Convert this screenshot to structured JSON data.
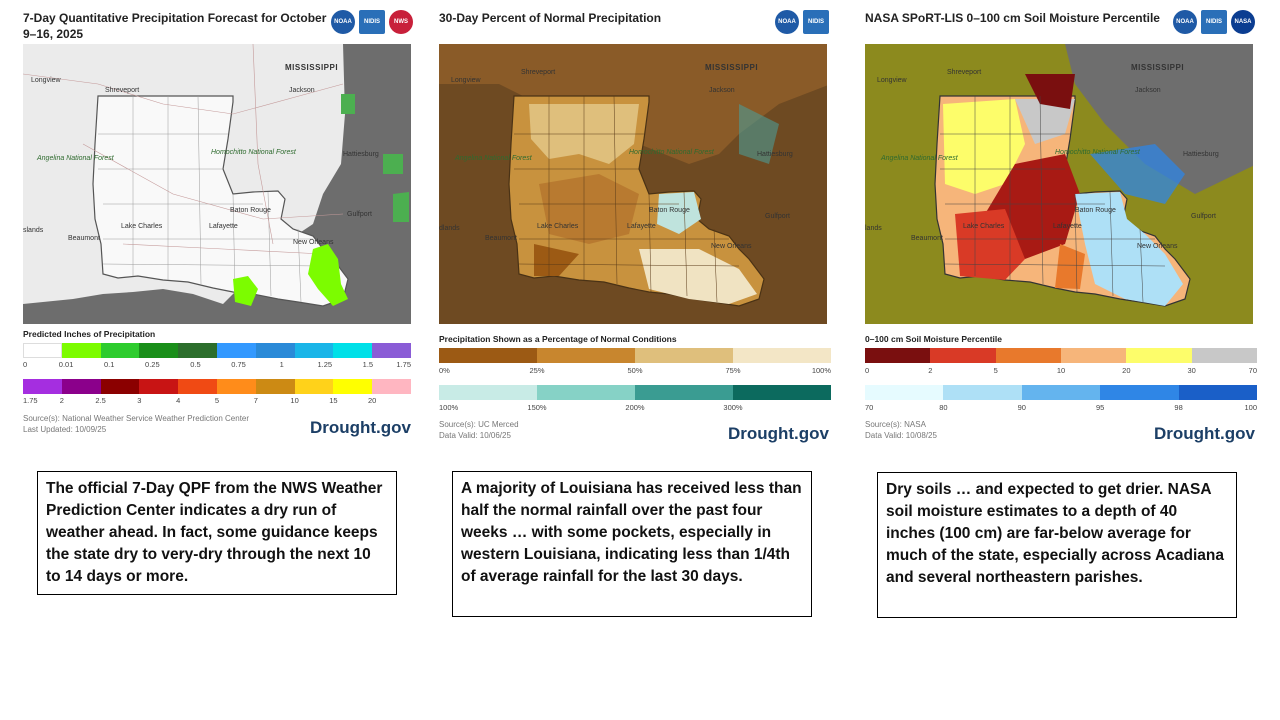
{
  "panels": [
    {
      "title": "7-Day Quantitative Precipitation Forecast for October 9–16, 2025",
      "logos": [
        "NOAA",
        "NIDIS",
        "NWS"
      ],
      "map_labels": {
        "longview": "Longview",
        "shreveport": "Shreveport",
        "mississippi": "MISSISSIPPI",
        "jackson": "Jackson",
        "angelina": "Angelina National Forest",
        "homochitto": "Homochitto National Forest",
        "hattiesburg": "Hattiesburg",
        "baton_rouge": "Baton Rouge",
        "gulfport": "Gulfport",
        "beaumont": "Beaumont",
        "lake_charles": "Lake Charles",
        "lafayette": "Lafayette",
        "new_orleans": "New Orleans",
        "islands": "slands"
      },
      "legend_title": "Predicted Inches of Precipitation",
      "legend_row1_colors": [
        "#ffffff",
        "#7cfc00",
        "#2ecc2e",
        "#1a8f1a",
        "#2c6e2c",
        "#3399ff",
        "#2a8ad8",
        "#1ab5e8",
        "#00e0e8",
        "#8a5cd6"
      ],
      "legend_row1_ticks": [
        "0",
        "0.01",
        "0.1",
        "0.25",
        "0.5",
        "0.75",
        "1",
        "1.25",
        "1.5",
        "1.75"
      ],
      "legend_row2_colors": [
        "#a52ee0",
        "#8b008b",
        "#8b0000",
        "#c81414",
        "#f04a14",
        "#ff8c1a",
        "#cc8a14",
        "#ffd21a",
        "#ffff00",
        "#ffb6c1"
      ],
      "legend_row2_ticks": [
        "1.75",
        "2",
        "2.5",
        "3",
        "4",
        "5",
        "7",
        "10",
        "15",
        "20"
      ],
      "source": "Source(s): National Weather Service Weather Prediction Center",
      "updated": "Last Updated: 10/09/25",
      "brand": "Drought.gov"
    },
    {
      "title": "30-Day Percent of Normal Precipitation",
      "logos": [
        "NOAA",
        "NIDIS"
      ],
      "map_labels": {
        "longview": "Longview",
        "shreveport": "Shreveport",
        "mississippi": "MISSISSIPPI",
        "jackson": "Jackson",
        "angelina": "Angelina National Forest",
        "homochitto": "Homochitto National Forest",
        "hattiesburg": "Hattiesburg",
        "baton_rouge": "Baton Rouge",
        "gulfport": "Gulfport",
        "beaumont": "Beaumont",
        "lake_charles": "Lake Charles",
        "lafayette": "Lafayette",
        "new_orleans": "New Orleans",
        "islands": "dlands"
      },
      "legend_title": "Precipitation Shown as a Percentage of Normal Conditions",
      "legend_row1_colors": [
        "#9c5a14",
        "#c8862e",
        "#dfbf7c",
        "#f3e6c6"
      ],
      "legend_row1_ticks": [
        "0%",
        "25%",
        "50%",
        "75%",
        "100%"
      ],
      "legend_row2_colors": [
        "#c8ebe6",
        "#86d2c6",
        "#3a9c92",
        "#0c6a5e"
      ],
      "legend_row2_ticks": [
        "100%",
        "150%",
        "200%",
        "300%"
      ],
      "source": "Source(s): UC Merced",
      "updated": "Data Valid: 10/06/25",
      "brand": "Drought.gov"
    },
    {
      "title": "NASA SPoRT-LIS 0–100 cm Soil Moisture Percentile",
      "logos": [
        "NOAA",
        "NIDIS",
        "NASA"
      ],
      "map_labels": {
        "longview": "Longview",
        "shreveport": "Shreveport",
        "mississippi": "MISSISSIPPI",
        "jackson": "Jackson",
        "angelina": "Angelina National Forest",
        "homochitto": "Homochitto National Forest",
        "hattiesburg": "Hattiesburg",
        "baton_rouge": "Baton Rouge",
        "gulfport": "Gulfport",
        "beaumont": "Beaumont",
        "lake_charles": "Lake Charles",
        "lafayette": "Lafayette",
        "new_orleans": "New Orleans",
        "islands": "lands"
      },
      "legend_title": "0–100 cm Soil Moisture Percentile",
      "legend_row1_colors": [
        "#7a0f0f",
        "#d93a26",
        "#e8792c",
        "#f6b57a",
        "#fdfd6a",
        "#c8c8c8"
      ],
      "legend_row1_ticks": [
        "0",
        "2",
        "5",
        "10",
        "20",
        "30",
        "70"
      ],
      "legend_row2_colors": [
        "#e6fbff",
        "#aee0f6",
        "#64b4ee",
        "#2f86e6",
        "#1a5fc8"
      ],
      "legend_row2_ticks": [
        "70",
        "80",
        "90",
        "95",
        "98",
        "100"
      ],
      "source": "Source(s): NASA",
      "updated": "Data Valid: 10/08/25",
      "brand": "Drought.gov"
    }
  ],
  "captions": [
    "The official 7-Day QPF from the NWS Weather Prediction Center indicates a dry run of weather ahead.  In fact, some guidance keeps the state dry to very-dry through the next 10 to 14 days or more.",
    "A majority of Louisiana has received less than half the normal rainfall over the past four weeks … with some pockets, especially in western Louisiana, indicating less than 1/4th of average rainfall for the last 30 days.",
    "Dry soils … and expected to get drier.  NASA soil moisture estimates to a depth of 40 inches (100 cm) are far-below average for much of the state, especially across Acadiana and several northeastern parishes."
  ]
}
